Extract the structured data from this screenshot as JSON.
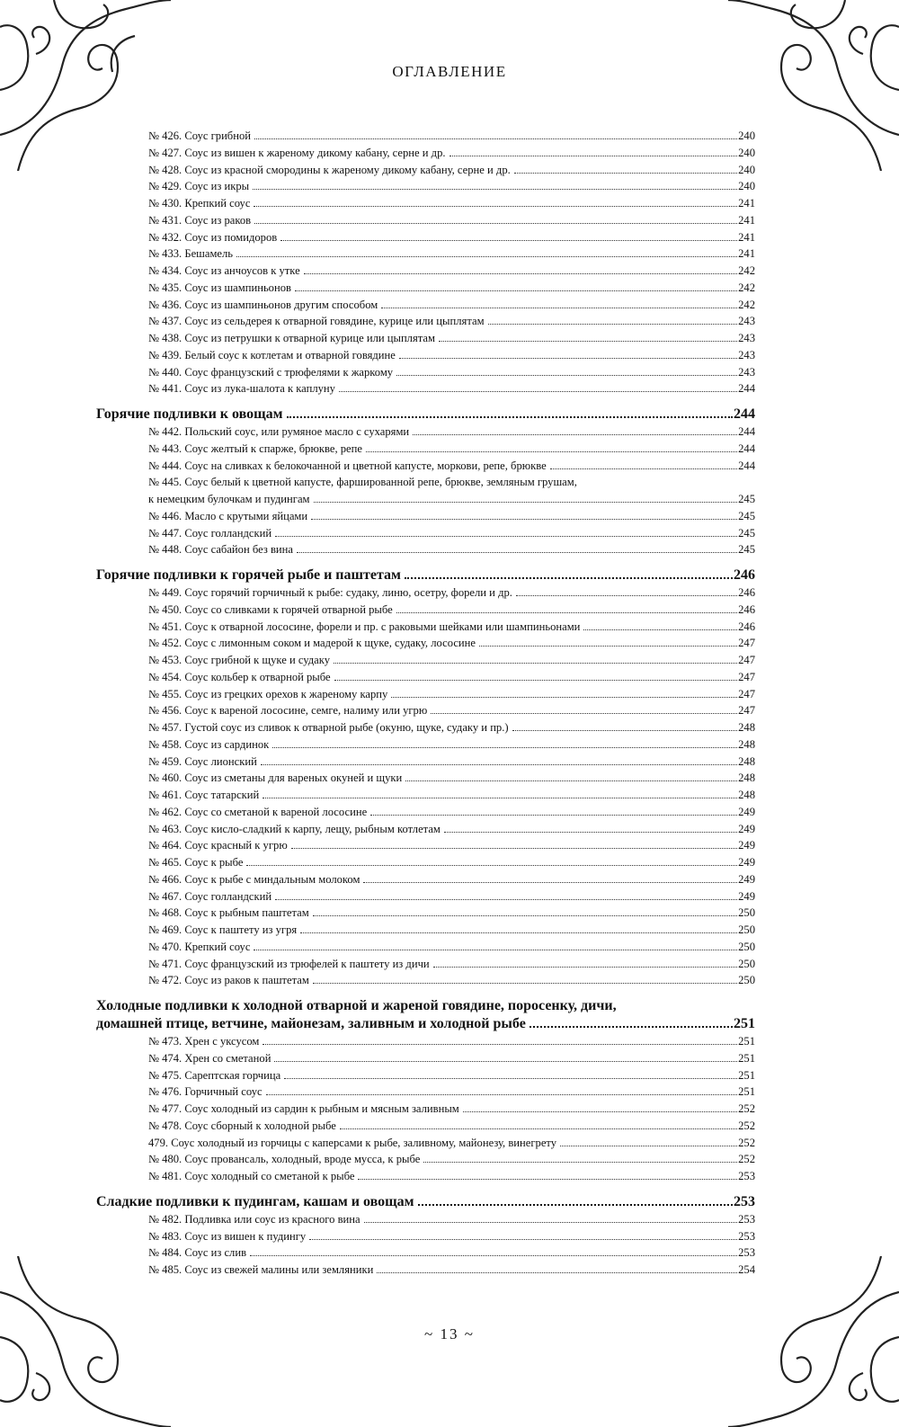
{
  "header": {
    "title": "ОГЛАВЛЕНИЕ"
  },
  "footer": {
    "page_number": "~ 13 ~"
  },
  "sections": [
    {
      "heading": null,
      "entries": [
        {
          "label": "№ 426. Соус грибной",
          "page": "240"
        },
        {
          "label": "№ 427. Соус из вишен к жареному дикому кабану, серне и др.",
          "page": "240"
        },
        {
          "label": "№ 428. Соус из красной смородины к жареному дикому кабану, серне и др.",
          "page": "240"
        },
        {
          "label": "№ 429. Соус из икры",
          "page": "240"
        },
        {
          "label": "№ 430. Крепкий соус",
          "page": "241"
        },
        {
          "label": "№ 431. Соус из раков",
          "page": "241"
        },
        {
          "label": "№ 432. Соус из помидоров",
          "page": "241"
        },
        {
          "label": "№ 433. Бешамель",
          "page": "241"
        },
        {
          "label": "№ 434. Соус из анчоусов к утке",
          "page": "242"
        },
        {
          "label": "№ 435. Соус из шампиньонов",
          "page": "242"
        },
        {
          "label": "№ 436. Соус из шампиньонов другим способом",
          "page": "242"
        },
        {
          "label": "№ 437. Соус из сельдерея к отварной говядине, курице или цыплятам",
          "page": "243"
        },
        {
          "label": "№ 438. Соус из петрушки к отварной курице или цыплятам",
          "page": "243"
        },
        {
          "label": "№ 439. Белый соус к котлетам и отварной говядине",
          "page": "243"
        },
        {
          "label": "№ 440. Соус французский с трюфелями к жаркому",
          "page": "243"
        },
        {
          "label": "№ 441. Соус из лука-шалота к каплуну",
          "page": "244"
        }
      ]
    },
    {
      "heading": "Горячие подливки к овощам",
      "page": "244",
      "entries": [
        {
          "label": "№ 442. Польский соус, или румяное масло с сухарями",
          "page": "244"
        },
        {
          "label": "№ 443. Соус желтый к спарже, брюкве, репе",
          "page": "244"
        },
        {
          "label": "№ 444. Соус на сливках к белокочанной и цветной капусте, моркови, репе, брюкве",
          "page": "244"
        },
        {
          "label": "№ 445. Соус белый к цветной капусте, фаршированной репе, брюкве, земляным грушам,",
          "label_cont": "к немецким булочкам и пудингам",
          "page": "245"
        },
        {
          "label": "№ 446. Масло с крутыми яйцами",
          "page": "245"
        },
        {
          "label": "№ 447. Соус голландский",
          "page": "245"
        },
        {
          "label": "№ 448. Соус сабайон без вина",
          "page": "245"
        }
      ]
    },
    {
      "heading": "Горячие подливки к горячей рыбе и паштетам",
      "page": "246",
      "entries": [
        {
          "label": "№ 449. Соус горячий горчичный к рыбе: судаку, линю, осетру, форели и др.",
          "page": "246"
        },
        {
          "label": "№ 450. Соус со сливками к горячей отварной рыбе",
          "page": "246"
        },
        {
          "label": "№ 451. Соус к отварной лососине, форели и пр. с раковыми шейками или шампиньонами",
          "page": "246"
        },
        {
          "label": "№ 452. Соус с лимонным соком и мадерой к щуке, судаку, лососине",
          "page": "247"
        },
        {
          "label": "№ 453. Соус грибной к щуке и судаку",
          "page": "247"
        },
        {
          "label": "№ 454. Соус кольбер к отварной рыбе",
          "page": "247"
        },
        {
          "label": "№ 455. Соус из грецких орехов к жареному карпу",
          "page": "247"
        },
        {
          "label": "№ 456. Соус к вареной лососине, семге, налиму или угрю",
          "page": "247"
        },
        {
          "label": "№ 457. Густой соус из сливок к отварной рыбе (окуню, щуке, судаку и пр.)",
          "page": "248"
        },
        {
          "label": "№ 458. Соус из сардинок",
          "page": "248"
        },
        {
          "label": "№ 459. Соус лионский",
          "page": "248"
        },
        {
          "label": "№ 460. Соус из сметаны для вареных окуней и щуки",
          "page": "248"
        },
        {
          "label": "№ 461. Соус татарский",
          "page": "248"
        },
        {
          "label": "№ 462. Соус со сметаной к вареной лососине",
          "page": "249"
        },
        {
          "label": "№ 463. Соус кисло-сладкий к карпу, лещу, рыбным котлетам",
          "page": "249"
        },
        {
          "label": "№ 464. Соус красный к угрю",
          "page": "249"
        },
        {
          "label": "№ 465. Соус к рыбе",
          "page": "249"
        },
        {
          "label": "№ 466. Соус к рыбе с миндальным молоком",
          "page": "249"
        },
        {
          "label": "№ 467. Соус голландский",
          "page": "249"
        },
        {
          "label": "№ 468. Соус к рыбным паштетам",
          "page": "250"
        },
        {
          "label": "№ 469. Соус к паштету из угря",
          "page": "250"
        },
        {
          "label": "№ 470. Крепкий соус",
          "page": "250"
        },
        {
          "label": "№ 471. Соус французский из трюфелей к паштету из дичи",
          "page": "250"
        },
        {
          "label": "№ 472. Соус из раков к паштетам",
          "page": "250"
        }
      ]
    },
    {
      "heading": "Холодные подливки к холодной отварной и жареной говядине, поросенку, дичи,",
      "heading_cont": "домашней птице, ветчине, майонезам, заливным и холодной рыбе",
      "page": "251",
      "entries": [
        {
          "label": "№ 473. Хрен с уксусом",
          "page": "251"
        },
        {
          "label": "№ 474. Хрен со сметаной",
          "page": "251"
        },
        {
          "label": "№ 475. Сарептская горчица",
          "page": "251"
        },
        {
          "label": "№ 476. Горчичный соус",
          "page": "251"
        },
        {
          "label": "№ 477. Соус холодный из сардин к рыбным и мясным заливным",
          "page": "252"
        },
        {
          "label": "№ 478. Соус сборный к холодной рыбе",
          "page": "252"
        },
        {
          "label": "479. Соус холодный из горчицы с каперсами к рыбе, заливному, майонезу, винегрету",
          "page": "252"
        },
        {
          "label": "№ 480. Соус провансаль, холодный, вроде мусса, к рыбе",
          "page": "252"
        },
        {
          "label": "№ 481. Соус холодный со сметаной к рыбе",
          "page": "253"
        }
      ]
    },
    {
      "heading": "Сладкие подливки к пудингам, кашам и овощам",
      "page": "253",
      "entries": [
        {
          "label": "№ 482. Подливка или соус из красного вина",
          "page": "253"
        },
        {
          "label": "№ 483. Соус из вишен к пудингу",
          "page": "253"
        },
        {
          "label": "№ 484. Соус из слив",
          "page": "253"
        },
        {
          "label": "№ 485. Соус из свежей малины или земляники",
          "page": "254"
        }
      ]
    }
  ]
}
